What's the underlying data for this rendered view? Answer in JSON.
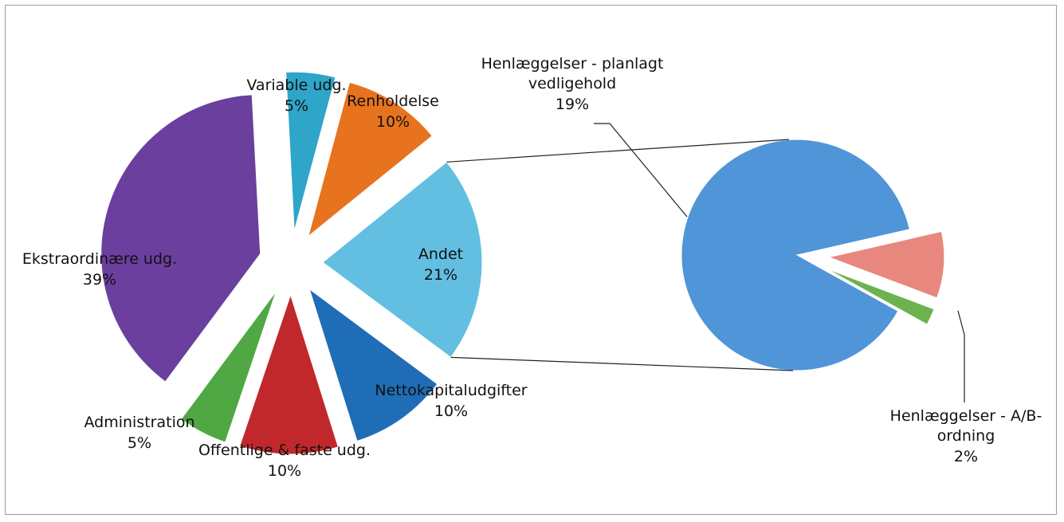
{
  "chart_data": {
    "type": "pie",
    "categories": [
      "Variable udg.",
      "Renholdelse",
      "Andet",
      "Nettokapitaludgifter",
      "Offentlige & faste udg.",
      "Administration",
      "Ekstraordinære udg."
    ],
    "values": [
      5,
      10,
      21,
      10,
      10,
      5,
      39
    ],
    "value_labels": [
      "5%",
      "10%",
      "21%",
      "10%",
      "10%",
      "5%",
      "39%"
    ],
    "colors": [
      "#2ea5c9",
      "#e8731f",
      "#62bfe2",
      "#1f6db6",
      "#c1282b",
      "#4fa843",
      "#6a3f9e"
    ],
    "secondary": {
      "categories": [
        "Henlæggelser - planlagt vedligehold",
        "Henlæggelser - A/B-ordning",
        null
      ],
      "values": [
        19,
        2,
        0.5
      ],
      "value_labels": [
        "19%",
        "2%",
        null
      ],
      "colors": [
        "#4f95d8",
        "#e8877e",
        "#6cb24e"
      ]
    }
  }
}
